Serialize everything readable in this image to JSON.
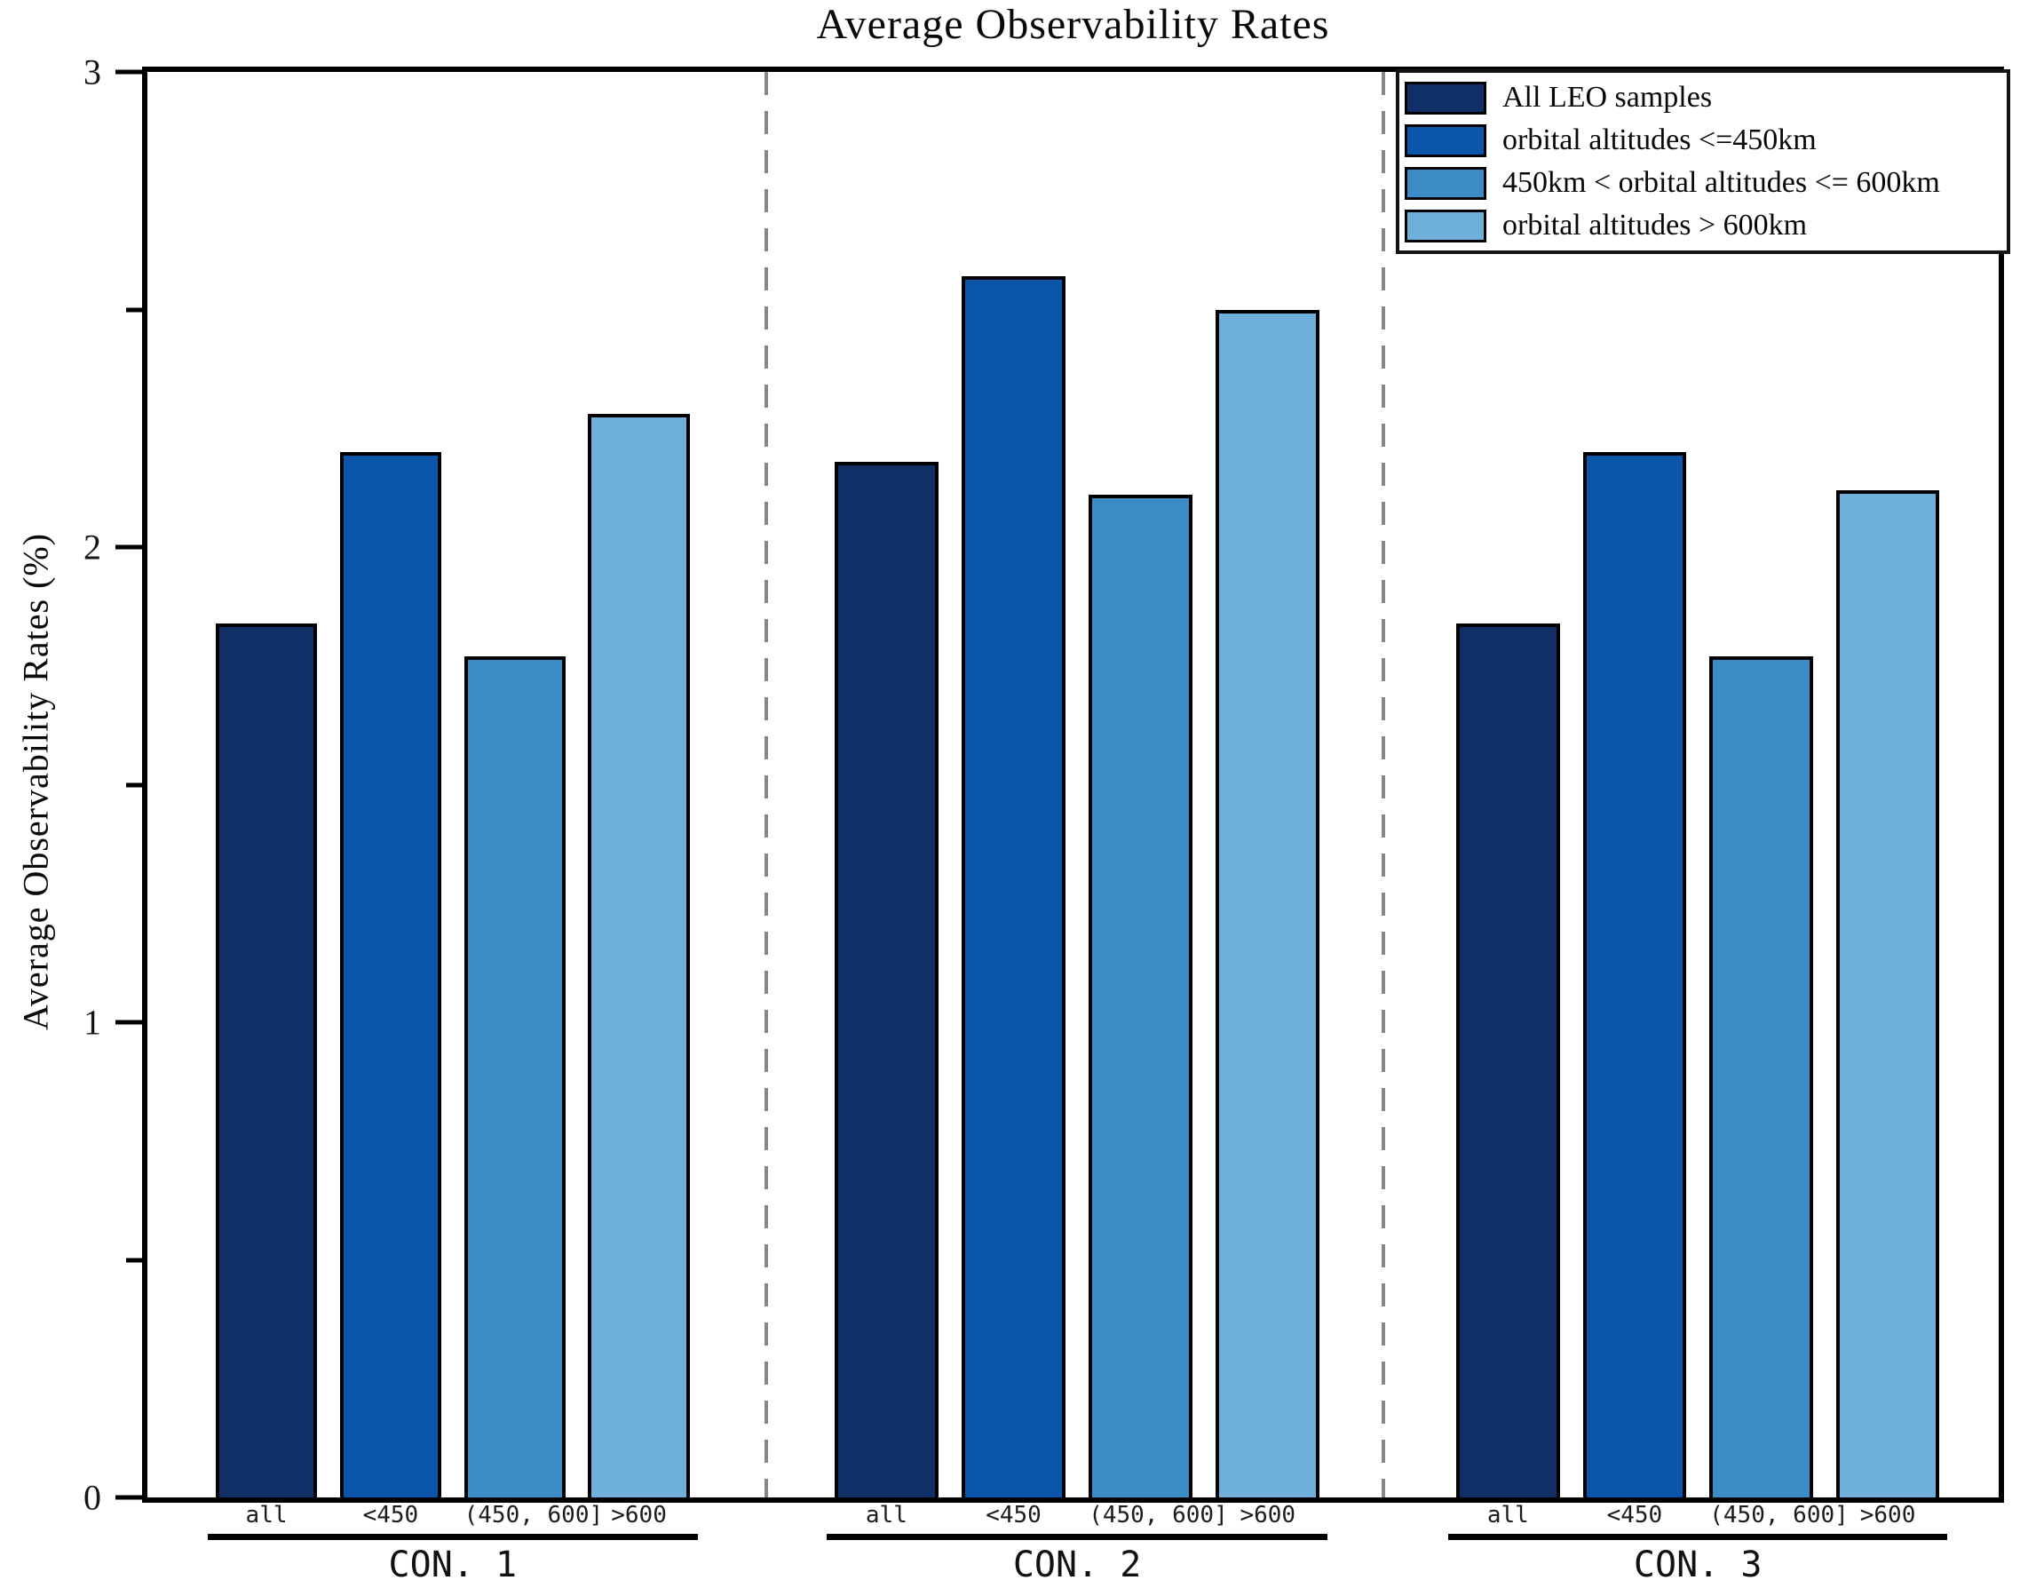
{
  "title": "Average Observability Rates",
  "y_axis": {
    "label": "Average Observability Rates (%)",
    "tick_labels": [
      "0",
      "1",
      "2",
      "3"
    ]
  },
  "x_axis": {
    "group_labels": [
      "CON. 1",
      "CON. 2",
      "CON. 3"
    ],
    "bar_labels": [
      "all",
      "<450",
      "(450, 600]",
      ">600"
    ]
  },
  "legend": {
    "position": "top-right",
    "items": [
      {
        "label": "All LEO samples",
        "color": "#0f2f66"
      },
      {
        "label": "orbital altitudes <=450km",
        "color": "#0b56aa"
      },
      {
        "label": "450km < orbital altitudes <= 600km",
        "color": "#3c8cc8"
      },
      {
        "label": "orbital altitudes > 600km",
        "color": "#6fb0da"
      }
    ]
  },
  "chart_data": {
    "type": "bar",
    "title": "Average Observability Rates",
    "xlabel": "",
    "ylabel": "Average Observability Rates (%)",
    "ylim": [
      0,
      3
    ],
    "yticks": [
      0,
      1,
      2,
      3
    ],
    "minor_yticks": [
      0.5,
      1.5,
      2.5
    ],
    "grid": false,
    "legend_position": "top-right",
    "categories": [
      "CON. 1",
      "CON. 2",
      "CON. 3"
    ],
    "bar_labels": [
      "all",
      "<450",
      "(450, 600]",
      ">600"
    ],
    "series": [
      {
        "name": "All LEO samples",
        "color": "#0f2f66",
        "values": [
          1.84,
          2.18,
          1.84
        ]
      },
      {
        "name": "orbital altitudes <=450km",
        "color": "#0b56aa",
        "values": [
          2.2,
          2.57,
          2.2
        ]
      },
      {
        "name": "450km < orbital altitudes <= 600km",
        "color": "#3c8cc8",
        "values": [
          1.77,
          2.11,
          1.77
        ]
      },
      {
        "name": "orbital altitudes > 600km",
        "color": "#6fb0da",
        "values": [
          2.28,
          2.5,
          2.12
        ]
      }
    ]
  }
}
